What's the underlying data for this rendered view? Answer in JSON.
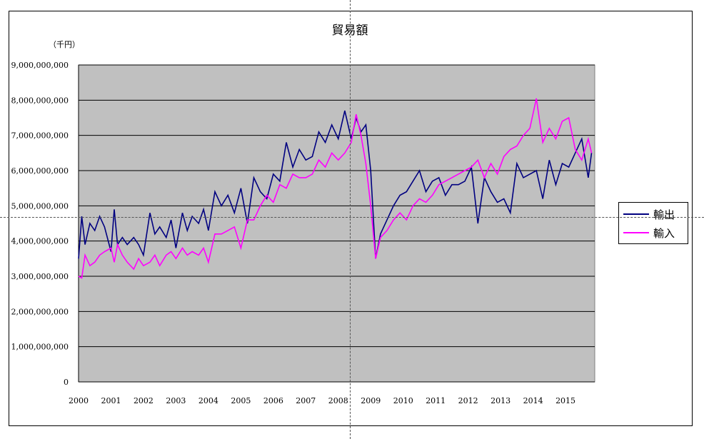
{
  "chart_data": {
    "type": "line",
    "title": "貿易額",
    "unit_label": "（千円）",
    "ylim": [
      0,
      9000000000
    ],
    "yticks": [
      "0",
      "1,000,000,000",
      "2,000,000,000",
      "3,000,000,000",
      "4,000,000,000",
      "5,000,000,000",
      "6,000,000,000",
      "7,000,000,000",
      "8,000,000,000",
      "9,000,000,000"
    ],
    "xlim": [
      2000,
      2015.9
    ],
    "xticks": [
      "2000",
      "2001",
      "2002",
      "2003",
      "2004",
      "2005",
      "2006",
      "2007",
      "2008",
      "2009",
      "2010",
      "2011",
      "2012",
      "2013",
      "2014",
      "2015"
    ],
    "grid": true,
    "legend_position": "right",
    "plot_background": "#c0c0c0",
    "series": [
      {
        "name": "輸出",
        "color": "#000080",
        "x": [
          2000.0,
          2000.1,
          2000.2,
          2000.35,
          2000.5,
          2000.65,
          2000.8,
          2001.0,
          2001.1,
          2001.2,
          2001.35,
          2001.5,
          2001.7,
          2001.85,
          2002.0,
          2002.2,
          2002.35,
          2002.5,
          2002.7,
          2002.85,
          2003.0,
          2003.2,
          2003.35,
          2003.5,
          2003.7,
          2003.85,
          2004.0,
          2004.2,
          2004.4,
          2004.6,
          2004.8,
          2005.0,
          2005.2,
          2005.4,
          2005.6,
          2005.8,
          2006.0,
          2006.2,
          2006.4,
          2006.6,
          2006.8,
          2007.0,
          2007.2,
          2007.4,
          2007.6,
          2007.8,
          2008.0,
          2008.2,
          2008.4,
          2008.55,
          2008.7,
          2008.85,
          2009.0,
          2009.15,
          2009.3,
          2009.5,
          2009.7,
          2009.9,
          2010.1,
          2010.3,
          2010.5,
          2010.7,
          2010.9,
          2011.1,
          2011.3,
          2011.5,
          2011.7,
          2011.9,
          2012.1,
          2012.3,
          2012.5,
          2012.7,
          2012.9,
          2013.1,
          2013.3,
          2013.5,
          2013.7,
          2013.9,
          2014.1,
          2014.3,
          2014.5,
          2014.7,
          2014.9,
          2015.1,
          2015.3,
          2015.5,
          2015.7,
          2015.8
        ],
        "y": [
          3500000000,
          4700000000,
          3900000000,
          4500000000,
          4300000000,
          4700000000,
          4400000000,
          3700000000,
          4900000000,
          3900000000,
          4100000000,
          3900000000,
          4100000000,
          3900000000,
          3600000000,
          4800000000,
          4200000000,
          4400000000,
          4100000000,
          4600000000,
          3800000000,
          4800000000,
          4300000000,
          4700000000,
          4500000000,
          4900000000,
          4300000000,
          5400000000,
          5000000000,
          5300000000,
          4800000000,
          5500000000,
          4500000000,
          5800000000,
          5400000000,
          5200000000,
          5900000000,
          5700000000,
          6800000000,
          6100000000,
          6600000000,
          6300000000,
          6400000000,
          7100000000,
          6800000000,
          7300000000,
          6900000000,
          7700000000,
          6900000000,
          7500000000,
          7100000000,
          7300000000,
          6000000000,
          3500000000,
          4200000000,
          4600000000,
          5000000000,
          5300000000,
          5400000000,
          5700000000,
          6000000000,
          5400000000,
          5700000000,
          5800000000,
          5300000000,
          5600000000,
          5600000000,
          5700000000,
          6100000000,
          4500000000,
          5800000000,
          5400000000,
          5100000000,
          5200000000,
          4800000000,
          6200000000,
          5800000000,
          5900000000,
          6000000000,
          5200000000,
          6300000000,
          5600000000,
          6200000000,
          6100000000,
          6500000000,
          6900000000,
          5800000000,
          6500000000
        ]
      },
      {
        "name": "輸入",
        "color": "#ff00ff",
        "x": [
          2000.0,
          2000.1,
          2000.2,
          2000.35,
          2000.5,
          2000.65,
          2000.8,
          2001.0,
          2001.1,
          2001.2,
          2001.35,
          2001.5,
          2001.7,
          2001.85,
          2002.0,
          2002.2,
          2002.35,
          2002.5,
          2002.7,
          2002.85,
          2003.0,
          2003.2,
          2003.35,
          2003.5,
          2003.7,
          2003.85,
          2004.0,
          2004.2,
          2004.4,
          2004.6,
          2004.8,
          2005.0,
          2005.2,
          2005.4,
          2005.6,
          2005.8,
          2006.0,
          2006.2,
          2006.4,
          2006.6,
          2006.8,
          2007.0,
          2007.2,
          2007.4,
          2007.6,
          2007.8,
          2008.0,
          2008.2,
          2008.4,
          2008.55,
          2008.7,
          2008.85,
          2009.0,
          2009.15,
          2009.3,
          2009.5,
          2009.7,
          2009.9,
          2010.1,
          2010.3,
          2010.5,
          2010.7,
          2010.9,
          2011.1,
          2011.3,
          2011.5,
          2011.7,
          2011.9,
          2012.1,
          2012.3,
          2012.5,
          2012.7,
          2012.9,
          2013.1,
          2013.3,
          2013.5,
          2013.7,
          2013.9,
          2014.1,
          2014.3,
          2014.5,
          2014.7,
          2014.9,
          2015.1,
          2015.3,
          2015.5,
          2015.7,
          2015.8
        ],
        "y": [
          3000000000,
          2950000000,
          3600000000,
          3300000000,
          3400000000,
          3600000000,
          3700000000,
          3800000000,
          3400000000,
          3900000000,
          3600000000,
          3400000000,
          3200000000,
          3500000000,
          3300000000,
          3400000000,
          3600000000,
          3300000000,
          3600000000,
          3700000000,
          3500000000,
          3800000000,
          3600000000,
          3700000000,
          3600000000,
          3800000000,
          3400000000,
          4200000000,
          4200000000,
          4300000000,
          4400000000,
          3800000000,
          4600000000,
          4600000000,
          5000000000,
          5300000000,
          5100000000,
          5600000000,
          5500000000,
          5900000000,
          5800000000,
          5800000000,
          5900000000,
          6300000000,
          6100000000,
          6500000000,
          6300000000,
          6500000000,
          6800000000,
          7600000000,
          7000000000,
          6200000000,
          5000000000,
          3500000000,
          4100000000,
          4300000000,
          4600000000,
          4800000000,
          4600000000,
          5000000000,
          5200000000,
          5100000000,
          5300000000,
          5600000000,
          5700000000,
          5800000000,
          5900000000,
          6000000000,
          6100000000,
          6300000000,
          5800000000,
          6200000000,
          5900000000,
          6400000000,
          6600000000,
          6700000000,
          7000000000,
          7200000000,
          8050000000,
          6800000000,
          7200000000,
          6900000000,
          7400000000,
          7500000000,
          6600000000,
          6300000000,
          6900000000,
          6500000000
        ]
      }
    ]
  }
}
